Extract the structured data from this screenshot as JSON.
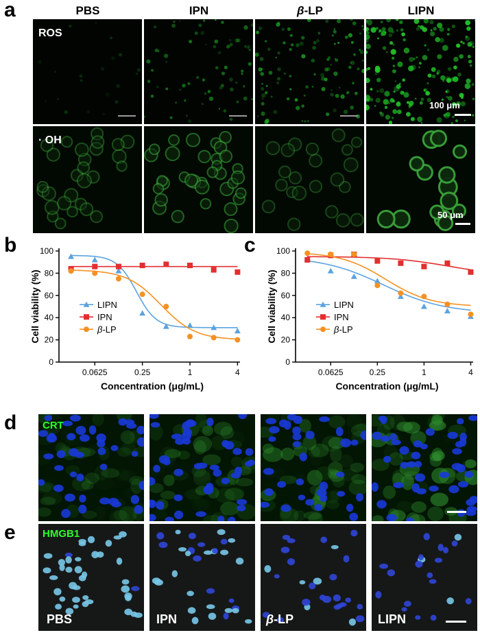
{
  "figure": {
    "panel_letters": {
      "a": "a",
      "b": "b",
      "c": "c",
      "d": "d",
      "e": "e"
    },
    "columns": [
      "PBS",
      "IPN",
      "β-LP",
      "LIPN"
    ],
    "row_a1_label": "ROS",
    "row_a2_label": "· OH",
    "scale_a1": "100 μm",
    "scale_a2": "50 μm",
    "row_d_label": "CRT",
    "row_e_label": "HMGB1",
    "row_e_panel_labels": [
      "PBS",
      "IPN",
      "β-LP",
      "LIPN"
    ],
    "colors": {
      "ros_green": "#22c92a",
      "cell_green": "#3aa33a",
      "nucleus_blue": "#1838d8",
      "label_green": "#2dff2d"
    }
  },
  "chart_data": [
    {
      "type": "scatter",
      "panel": "b",
      "xlabel": "Concentration (μg/mL)",
      "ylabel": "Cell viability (%)",
      "x_scale": "log2",
      "xticks": [
        "0.0625",
        "0.25",
        "1",
        "4"
      ],
      "xtick_values": [
        0.0625,
        0.25,
        1,
        4
      ],
      "yticks": [
        0,
        20,
        40,
        60,
        80,
        100
      ],
      "xlim": [
        0.022,
        4.3
      ],
      "ylim": [
        0,
        100
      ],
      "legend": "left",
      "series": [
        {
          "name": "LIPN",
          "color": "#5ba3e0",
          "marker": "triangle",
          "x": [
            0.03125,
            0.0625,
            0.125,
            0.25,
            0.5,
            1,
            2,
            4
          ],
          "y": [
            95,
            92,
            82,
            44,
            32,
            33,
            31,
            28
          ],
          "curve": {
            "bottom": 31,
            "top": 96,
            "ec50": 0.21,
            "hill": 3.5
          }
        },
        {
          "name": "IPN",
          "color": "#e32f2f",
          "marker": "square",
          "x": [
            0.03125,
            0.0625,
            0.125,
            0.25,
            0.5,
            1,
            2,
            4
          ],
          "y": [
            84,
            86,
            86,
            87,
            88,
            87,
            83,
            81
          ],
          "curve": {
            "bottom": 86,
            "top": 86,
            "ec50": 1,
            "hill": 1
          }
        },
        {
          "name": "β-LP",
          "color": "#f59121",
          "marker": "circle",
          "x": [
            0.03125,
            0.0625,
            0.125,
            0.25,
            0.5,
            1,
            2,
            4
          ],
          "y": [
            82,
            80,
            75,
            61,
            50,
            23,
            22,
            20
          ],
          "curve": {
            "bottom": 20,
            "top": 83,
            "ec50": 0.43,
            "hill": 2.0
          }
        }
      ]
    },
    {
      "type": "scatter",
      "panel": "c",
      "xlabel": "Concentration (μg/mL)",
      "ylabel": "Cell viability (%)",
      "x_scale": "log2",
      "xticks": [
        "0.0625",
        "0.25",
        "1",
        "4"
      ],
      "xtick_values": [
        0.0625,
        0.25,
        1,
        4
      ],
      "yticks": [
        0,
        20,
        40,
        60,
        80,
        100
      ],
      "xlim": [
        0.022,
        4.3
      ],
      "ylim": [
        0,
        100
      ],
      "legend": "left",
      "series": [
        {
          "name": "LIPN",
          "color": "#5ba3e0",
          "marker": "triangle",
          "x": [
            0.03125,
            0.0625,
            0.125,
            0.25,
            0.5,
            1,
            2,
            4
          ],
          "y": [
            93,
            82,
            77,
            73,
            59,
            50,
            46,
            41
          ],
          "curve": {
            "bottom": 44,
            "top": 95,
            "ec50": 0.3,
            "hill": 1.1
          }
        },
        {
          "name": "IPN",
          "color": "#e32f2f",
          "marker": "square",
          "x": [
            0.03125,
            0.0625,
            0.125,
            0.25,
            0.5,
            1,
            2,
            4
          ],
          "y": [
            92,
            96,
            97,
            91,
            89,
            86,
            89,
            81
          ],
          "curve": {
            "bottom": 78,
            "top": 95,
            "ec50": 2,
            "hill": 1.2
          }
        },
        {
          "name": "β-LP",
          "color": "#f59121",
          "marker": "circle",
          "x": [
            0.03125,
            0.0625,
            0.125,
            0.25,
            0.5,
            1,
            2,
            4
          ],
          "y": [
            98,
            97,
            97,
            69,
            62,
            59,
            52,
            43
          ],
          "curve": {
            "bottom": 50,
            "top": 99,
            "ec50": 0.32,
            "hill": 1.5
          }
        }
      ]
    }
  ]
}
